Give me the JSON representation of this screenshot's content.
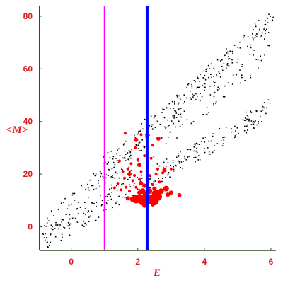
{
  "chart_data": {
    "type": "scatter",
    "title": "",
    "xlabel": "E",
    "ylabel": "<M>",
    "xlim": [
      -0.95,
      6.15
    ],
    "ylim": [
      -9,
      84
    ],
    "xticks": [
      0,
      2,
      4,
      6
    ],
    "yticks": [
      0,
      20,
      40,
      60,
      80
    ],
    "grid": false,
    "colors": {
      "axis": "#2e4f1e",
      "tick_text": "#e01818",
      "points": "#000000",
      "highlight": "#ff0000",
      "vline_magenta": "#ff00ff",
      "vline_blue": "#0000ff"
    },
    "vlines": [
      {
        "name": "magenta-line",
        "x": 1.0,
        "color": "#ff00ff",
        "width": 2
      },
      {
        "name": "blue-line",
        "x": 2.28,
        "color": "#0000ff",
        "width": 4
      }
    ],
    "series": [
      {
        "type": "scatter",
        "color": "#000000",
        "size": 1.6,
        "bands": [
          {
            "x0": -0.9,
            "x1": 6.1,
            "y0": -2,
            "y1": 80,
            "spread": 4.5,
            "count": 260
          },
          {
            "x0": -0.8,
            "x1": 6.0,
            "y0": -5,
            "y1": 45,
            "spread": 4.0,
            "count": 260
          },
          {
            "x0": 0.8,
            "x1": 6.0,
            "y0": 17,
            "y1": 72,
            "spread": 9.0,
            "count": 160
          }
        ]
      },
      {
        "type": "scatter",
        "color": "#ff0000",
        "points": [
          [
            1.62,
            35.5,
            2
          ],
          [
            1.92,
            30,
            2
          ],
          [
            2.1,
            35,
            2
          ],
          [
            2.45,
            31,
            2
          ],
          [
            2.62,
            33.5,
            3
          ],
          [
            1.95,
            33,
            3
          ],
          [
            2.2,
            27,
            2
          ],
          [
            2.4,
            26,
            2
          ],
          [
            1.45,
            25,
            2
          ],
          [
            1.8,
            24,
            2
          ],
          [
            2.05,
            23.5,
            3
          ],
          [
            2.3,
            22.5,
            2
          ],
          [
            1.7,
            22,
            2
          ],
          [
            2.6,
            22,
            2
          ],
          [
            2.8,
            21.5,
            3
          ],
          [
            3.0,
            22,
            2
          ],
          [
            1.55,
            21,
            2
          ],
          [
            1.75,
            20,
            3
          ],
          [
            1.9,
            19.5,
            2
          ],
          [
            2.05,
            18,
            2
          ],
          [
            2.35,
            19.5,
            2
          ],
          [
            2.55,
            20,
            2
          ],
          [
            2.75,
            20.5,
            2
          ],
          [
            1.6,
            18.5,
            2
          ],
          [
            1.85,
            17.5,
            2
          ],
          [
            1.4,
            16.5,
            2
          ],
          [
            2.1,
            16.5,
            3
          ],
          [
            2.3,
            17,
            2
          ],
          [
            2.45,
            16,
            2
          ],
          [
            2.65,
            17,
            2
          ],
          [
            1.65,
            15,
            2
          ],
          [
            1.95,
            15,
            2
          ],
          [
            2.2,
            15.5,
            3
          ],
          [
            2.5,
            14.5,
            3
          ],
          [
            1.5,
            14,
            2
          ],
          [
            1.75,
            13.5,
            2
          ],
          [
            2.7,
            13.5,
            4
          ],
          [
            2.85,
            14.5,
            4
          ],
          [
            2.15,
            13.5,
            4
          ],
          [
            2.35,
            13.5,
            4
          ],
          [
            2.55,
            12.5,
            6
          ],
          [
            2.25,
            12,
            5
          ],
          [
            2.05,
            11,
            5
          ],
          [
            1.95,
            10.5,
            6
          ],
          [
            2.4,
            10.5,
            6
          ],
          [
            2.6,
            11.5,
            6
          ],
          [
            2.15,
            10,
            7
          ],
          [
            2.3,
            10.2,
            7
          ],
          [
            2.5,
            9.8,
            6
          ],
          [
            1.85,
            10.5,
            4
          ],
          [
            2.05,
            13,
            3
          ],
          [
            2.9,
            12.2,
            3
          ],
          [
            1.7,
            10.8,
            3
          ],
          [
            2.45,
            8.5,
            3
          ],
          [
            2.2,
            8,
            3
          ],
          [
            3.25,
            12,
            3
          ],
          [
            3.0,
            13,
            3
          ],
          [
            1.3,
            14.8,
            2
          ],
          [
            2.1,
            21,
            2
          ],
          [
            2.0,
            25.5,
            2
          ]
        ]
      }
    ]
  }
}
